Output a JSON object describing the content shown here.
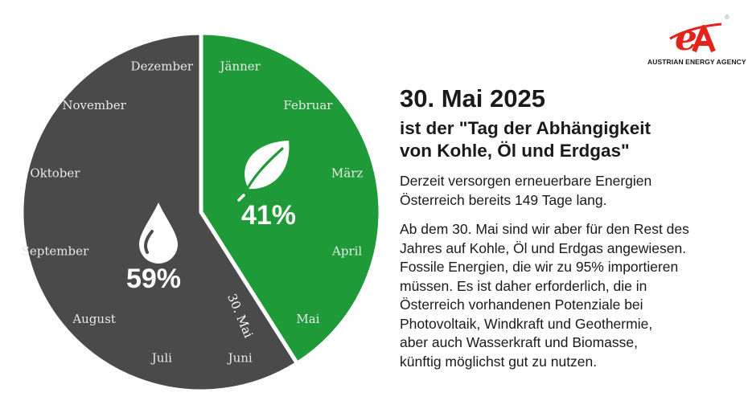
{
  "brand": {
    "name": "AUSTRIAN ENERGY AGENCY",
    "logo_letters": "eA",
    "registered_mark": "®",
    "accent": "#e3231b"
  },
  "text": {
    "headline": "30. Mai 2025",
    "subhead": "ist der \"Tag der Abhängigkeit\nvon Kohle, Öl und Erdgas\"",
    "para1": "Derzeit versorgen erneuerbare Energien\nÖsterreich bereits 149 Tage lang.",
    "para2": "Ab dem 30. Mai sind wir aber für den Rest des\nJahres auf Kohle, Öl und Erdgas angewiesen.\nFossile Energien, die wir zu 95% importieren\nmüssen. Es ist daher erforderlich, die in\nÖsterreich vorhandenen Potenziale bei\nPhotovoltaik, Windkraft und Geothermie,\naber auch Wasserkraft und Biomasse,\nkünftig möglichst gut zu nutzen."
  },
  "chart_data": {
    "type": "pie",
    "start": "top, clockwise",
    "slices": [
      {
        "label": "41%",
        "value": 41,
        "color": "#1f9a38",
        "icon": "leaf-icon"
      },
      {
        "label": "59%",
        "value": 59,
        "color": "#4a4a4a",
        "icon": "drop-icon"
      }
    ],
    "months": [
      "Jänner",
      "Februar",
      "März",
      "April",
      "Mai",
      "Juni",
      "Juli",
      "August",
      "September",
      "Oktober",
      "November",
      "Dezember"
    ],
    "marker": "30. Mai"
  }
}
